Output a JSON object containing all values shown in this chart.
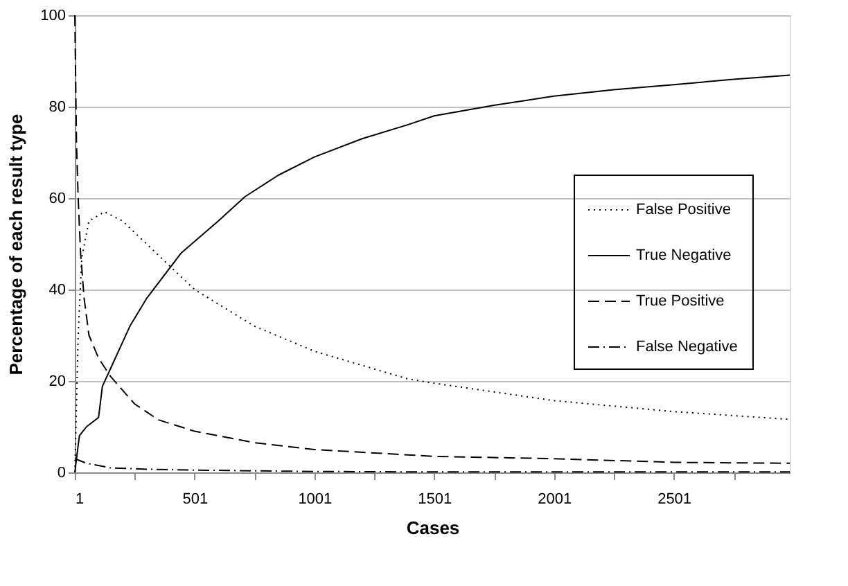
{
  "chart_data": {
    "type": "line",
    "xlabel": "Cases",
    "ylabel": "Percentage of each result type",
    "xlim": [
      1,
      2985
    ],
    "ylim": [
      0,
      100
    ],
    "xticks": [
      1,
      {
        "value": 251,
        "label": null
      },
      501,
      {
        "value": 751,
        "label": null
      },
      1001,
      {
        "value": 1251,
        "label": null
      },
      1501,
      {
        "value": 1751,
        "label": null
      },
      2001,
      {
        "value": 2251,
        "label": null
      },
      2501,
      {
        "value": 2751,
        "label": null
      }
    ],
    "yticks": [
      0,
      20,
      40,
      60,
      80,
      100
    ],
    "grid": "y",
    "legend": "right",
    "series": [
      {
        "name": "False Positive",
        "color": "#000000",
        "line_style": "dotted",
        "x": [
          1,
          15,
          30,
          60,
          125,
          200,
          300,
          400,
          501,
          750,
          1001,
          1388,
          1501,
          2001,
          2501,
          2985
        ],
        "values": [
          0,
          30,
          47,
          55,
          57,
          55,
          50,
          45,
          40,
          32,
          26.5,
          20.5,
          19.5,
          15.7,
          13.3,
          11.6
        ]
      },
      {
        "name": "True Negative",
        "color": "#000000",
        "line_style": "solid",
        "x": [
          1,
          20,
          50,
          100,
          116,
          170,
          231,
          300,
          445,
          600,
          711,
          850,
          1001,
          1200,
          1388,
          1501,
          1750,
          2001,
          2250,
          2501,
          2750,
          2985
        ],
        "values": [
          0,
          8,
          10,
          12,
          18.8,
          25,
          32,
          38,
          48,
          55,
          60.3,
          65,
          69,
          73,
          76,
          78,
          80.3,
          82.3,
          83.7,
          84.8,
          86,
          86.9
        ]
      },
      {
        "name": "True Positive",
        "color": "#000000",
        "line_style": "dashed",
        "x": [
          1,
          8,
          15,
          25,
          40,
          60,
          100,
          150,
          250,
          350,
          501,
          750,
          1001,
          1501,
          2001,
          2501,
          2985
        ],
        "values": [
          100,
          72,
          60,
          48,
          38,
          30,
          25,
          21,
          15,
          11.5,
          9,
          6.5,
          5,
          3.5,
          3,
          2.2,
          2
        ]
      },
      {
        "name": "False Negative",
        "color": "#000000",
        "line_style": "dashdot",
        "x": [
          1,
          50,
          150,
          300,
          501,
          1001,
          1501,
          2001,
          2501,
          2985
        ],
        "values": [
          3,
          2,
          1,
          0.7,
          0.5,
          0.2,
          0.1,
          0.1,
          0.1,
          0.1
        ]
      }
    ]
  }
}
